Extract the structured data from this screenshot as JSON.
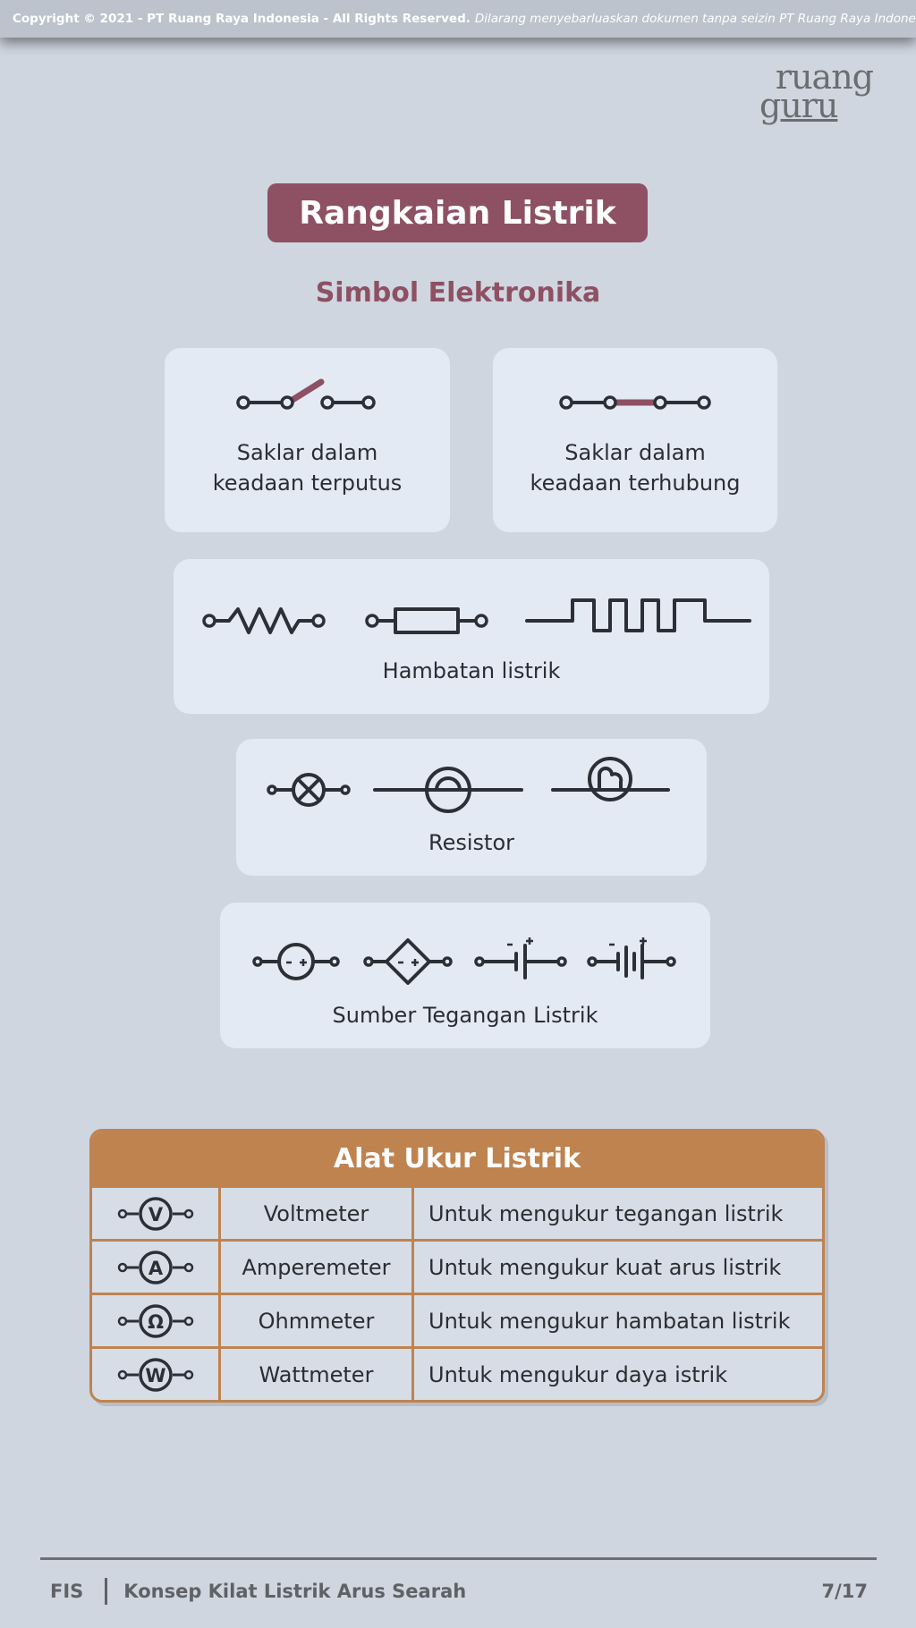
{
  "copyright": {
    "bold": "Copyright © 2021 - PT Ruang Raya Indonesia - All Rights Reserved.",
    "italic": "Dilarang menyebarluaskan dokumen tanpa seizin PT Ruang Raya Indonesia."
  },
  "logo": {
    "line1": "ruang",
    "line2": "guru"
  },
  "title": "Rangkaian Listrik",
  "subtitle": "Simbol Elektronika",
  "symbols": {
    "switch_open": [
      "Saklar dalam",
      "keadaan terputus"
    ],
    "switch_closed": [
      "Saklar dalam",
      "keadaan terhubung"
    ],
    "resistance": "Hambatan listrik",
    "resistor": "Resistor",
    "voltage_source": "Sumber Tegangan Listrik"
  },
  "colors": {
    "accent": "#8e5063",
    "table": "#bf8350",
    "card": "#e3eaf4",
    "background": "#cfd6e0"
  },
  "table": {
    "title": "Alat Ukur Listrik",
    "rows": [
      {
        "icon_letter": "V",
        "icon": "voltmeter-icon",
        "name": "Voltmeter",
        "desc": "Untuk mengukur tegangan listrik"
      },
      {
        "icon_letter": "A",
        "icon": "amperemeter-icon",
        "name": "Amperemeter",
        "desc": "Untuk mengukur kuat arus listrik"
      },
      {
        "icon_letter": "Ω",
        "icon": "ohmmeter-icon",
        "name": "Ohmmeter",
        "desc": "Untuk mengukur hambatan listrik"
      },
      {
        "icon_letter": "W",
        "icon": "wattmeter-icon",
        "name": "Wattmeter",
        "desc": "Untuk mengukur daya istrik"
      }
    ]
  },
  "footer": {
    "subject": "FIS",
    "topic": "Konsep Kilat Listrik Arus Searah",
    "page": "7/17"
  }
}
